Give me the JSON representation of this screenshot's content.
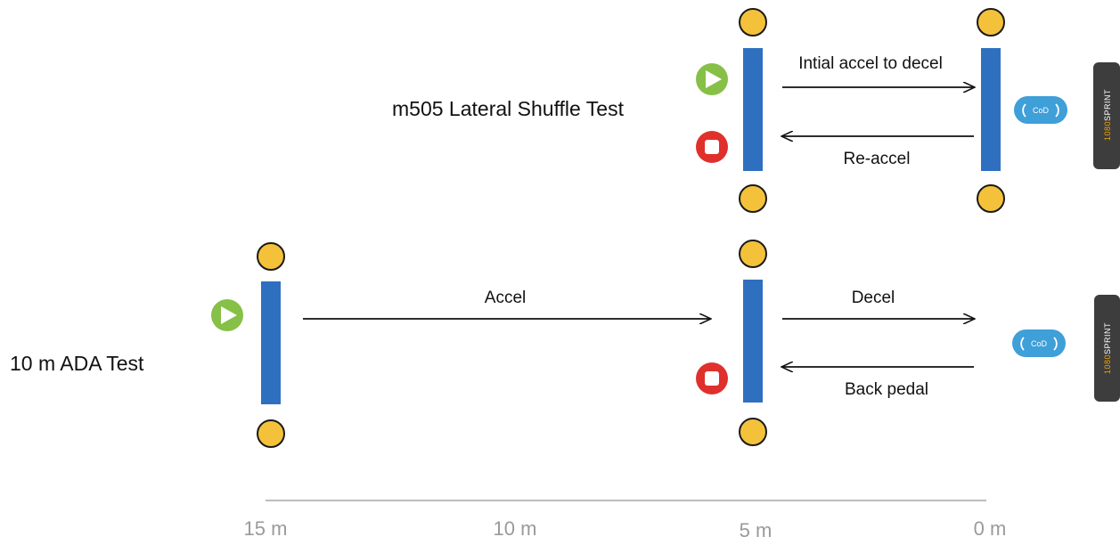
{
  "colors": {
    "bar": "#2f6fc0",
    "cone": "#f4c23a",
    "cone_stroke": "#1a1a1a",
    "start": "#86c046",
    "stop": "#e0302c",
    "cod": "#3f9fd8",
    "device": "#3d3d3d",
    "device_accent": "#f0a400",
    "axis": "#bdbdbd",
    "axis_text": "#9a9a9a",
    "arrow": "#111111"
  },
  "tests": {
    "lateral_shuffle": {
      "title": "m505 Lateral Shuffle Test",
      "forward_label": "Intial accel to decel",
      "return_label": "Re-accel"
    },
    "ada": {
      "title": "10 m ADA Test",
      "accel_label": "Accel",
      "decel_label": "Decel",
      "return_label": "Back pedal"
    }
  },
  "icons": {
    "start": "play-icon",
    "stop": "stop-icon",
    "cod": "cod-icon",
    "device": "sprint-device-icon",
    "cone": "cone-icon"
  },
  "cod_badge": {
    "text": "CoD"
  },
  "device": {
    "brand_prefix": "1080",
    "brand_suffix": "SPRINT"
  },
  "axis": {
    "ticks": [
      "15 m",
      "10 m",
      "5 m",
      "0 m"
    ]
  }
}
